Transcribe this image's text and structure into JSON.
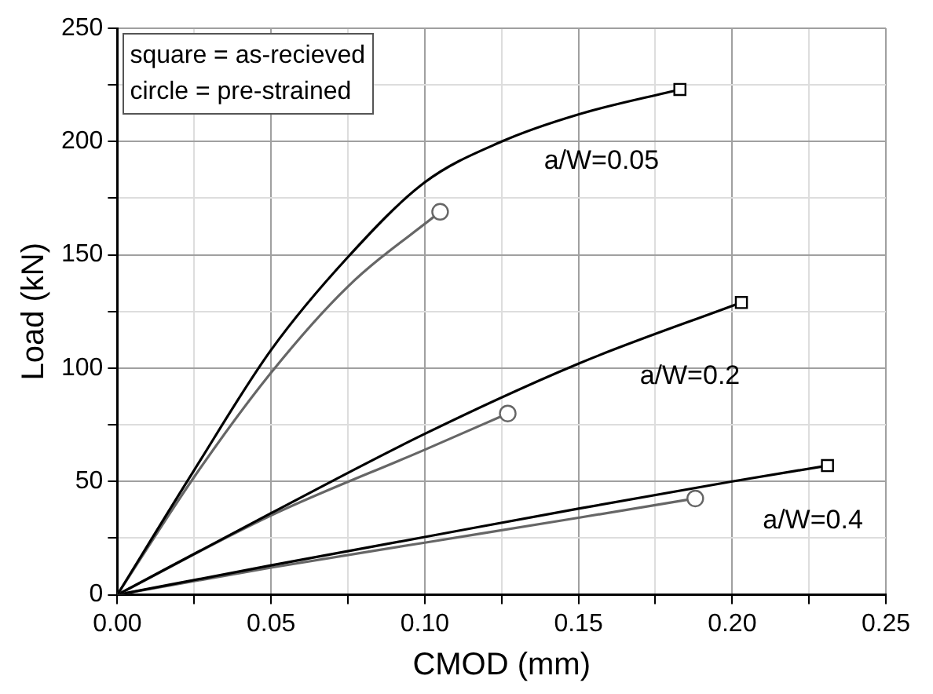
{
  "chart_data": {
    "type": "line",
    "xlabel": "CMOD (mm)",
    "ylabel": "Load (kN)",
    "xlim": [
      0,
      0.25
    ],
    "ylim": [
      0,
      250
    ],
    "xticks": [
      {
        "value": 0,
        "label": "0.00"
      },
      {
        "value": 0.025,
        "label": null
      },
      {
        "value": 0.05,
        "label": "0.05"
      },
      {
        "value": 0.075,
        "label": null
      },
      {
        "value": 0.1,
        "label": "0.10"
      },
      {
        "value": 0.125,
        "label": null
      },
      {
        "value": 0.15,
        "label": "0.15"
      },
      {
        "value": 0.175,
        "label": null
      },
      {
        "value": 0.2,
        "label": "0.20"
      },
      {
        "value": 0.225,
        "label": null
      },
      {
        "value": 0.25,
        "label": "0.25"
      }
    ],
    "yticks": [
      0,
      {
        "value": 25,
        "label": null
      },
      50,
      {
        "value": 75,
        "label": null
      },
      100,
      {
        "value": 125,
        "label": null
      },
      150,
      {
        "value": 175,
        "label": null
      },
      200,
      {
        "value": 225,
        "label": null
      },
      250
    ],
    "grid": true,
    "legend": false,
    "line_style": "solid",
    "series": [
      {
        "color": "#000000",
        "x": [
          0,
          0.025,
          0.05,
          0.075,
          0.1,
          0.125,
          0.15,
          0.183
        ],
        "values": [
          0,
          55,
          108,
          149,
          182,
          200,
          212,
          223
        ]
      },
      {
        "color": "#666666",
        "x": [
          0,
          0.025,
          0.05,
          0.075,
          0.105
        ],
        "values": [
          0,
          52,
          98,
          136,
          169
        ]
      },
      {
        "color": "#000000",
        "x": [
          0,
          0.05,
          0.1,
          0.15,
          0.203
        ],
        "values": [
          0,
          36,
          71,
          102,
          129
        ]
      },
      {
        "color": "#666666",
        "x": [
          0,
          0.05,
          0.1,
          0.127
        ],
        "values": [
          0,
          35,
          64,
          80
        ]
      },
      {
        "color": "#000000",
        "x": [
          0,
          0.05,
          0.1,
          0.15,
          0.2,
          0.231
        ],
        "values": [
          0,
          13,
          25.5,
          38,
          50,
          57
        ]
      },
      {
        "color": "#666666",
        "x": [
          0,
          0.05,
          0.1,
          0.15,
          0.188
        ],
        "values": [
          0,
          12,
          23,
          34,
          42.5
        ]
      },
      {
        "type": "scatter",
        "color": "#000000",
        "marker": "square",
        "x": [
          0.183,
          0.203,
          0.231
        ],
        "values": [
          223,
          129,
          57
        ]
      },
      {
        "type": "scatter",
        "color": "#666666",
        "marker": "circle",
        "x": [
          0.105,
          0.127,
          0.188
        ],
        "values": [
          169,
          80,
          42.5
        ]
      }
    ],
    "annotations": [
      "square = as-recieved",
      "circle = pre-strained",
      "a/W=0.05",
      "a/W=0.2",
      "a/W=0.4"
    ]
  }
}
